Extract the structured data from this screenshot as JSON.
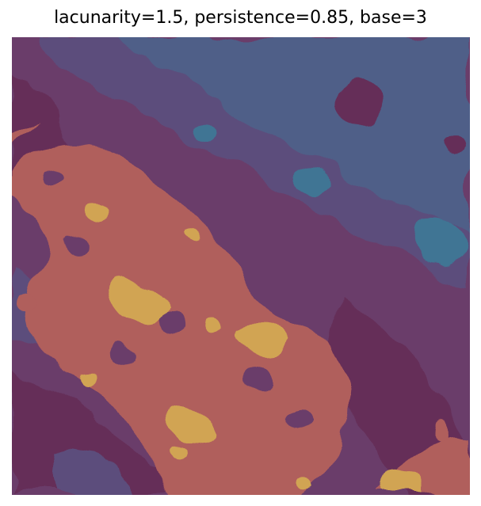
{
  "figure": {
    "title": "lacunarity=1.5, persistence=0.85, base=3"
  },
  "palette": {
    "level_1": "#652f58",
    "level_2": "#6a3d6a",
    "level_3": "#5c4e7c",
    "level_4": "#4f5f88",
    "level_5": "#3f7594",
    "level_6": "#b05e5c",
    "level_7": "#d1a453",
    "accent_orange": "#c86a55"
  }
}
